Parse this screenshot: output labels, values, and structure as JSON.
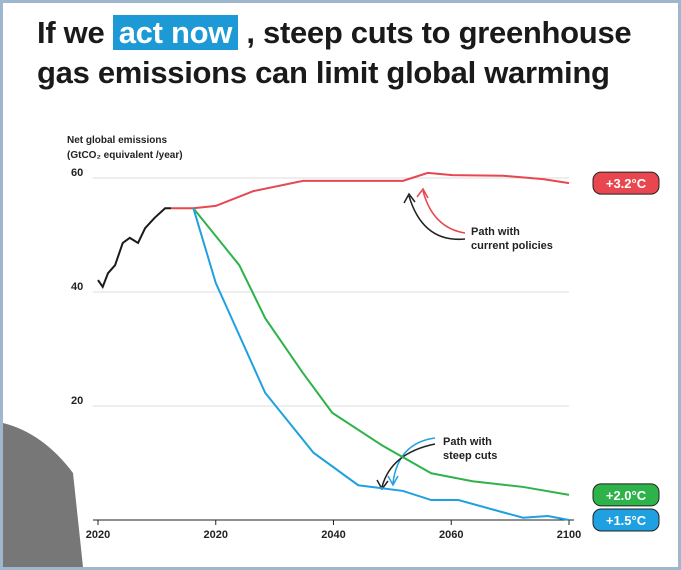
{
  "title": {
    "before": "If we",
    "highlight": "act now",
    "after": ", steep cuts to greenhouse",
    "line2": "gas emissions can limit global warming"
  },
  "chart_data": {
    "type": "line",
    "y_label": [
      "Net global emissions",
      "(GtCO₂ equivalent /year)"
    ],
    "xlim": [
      0,
      4
    ],
    "xticks": [
      0,
      1,
      2,
      3,
      4
    ],
    "categories": [
      "2020",
      "2020",
      "2040",
      "2060",
      "2100"
    ],
    "ylim": [
      0,
      60
    ],
    "yticks": [
      20,
      40,
      60
    ],
    "grid": true,
    "series": [
      {
        "color": "#1a1a1a",
        "x": [
          0,
          0.04,
          0.085,
          0.145,
          0.21,
          0.27,
          0.34,
          0.4,
          0.48,
          0.57,
          0.62
        ],
        "values": [
          42.1,
          40.9,
          43.3,
          44.7,
          48.6,
          49.5,
          48.6,
          51.2,
          53,
          54.7,
          54.7
        ]
      },
      {
        "color": "#e8474f",
        "label": "+3.2°C",
        "x": [
          0.62,
          0.81,
          1.0,
          1.32,
          1.74,
          2.16,
          2.59,
          2.8,
          3.01,
          3.44,
          3.78,
          4.0
        ],
        "values": [
          54.7,
          54.7,
          55.1,
          57.7,
          59.5,
          59.5,
          59.5,
          60.9,
          60.5,
          60.4,
          59.8,
          59.1
        ]
      },
      {
        "color": "#2db34a",
        "label": "+2.0°C",
        "x": [
          0.81,
          1.2,
          1.42,
          1.74,
          1.99,
          2.42,
          2.83,
          3.18,
          3.61,
          4.0
        ],
        "values": [
          54.7,
          44.7,
          35.4,
          25.8,
          18.8,
          13,
          8.2,
          6.8,
          5.8,
          4.4
        ]
      },
      {
        "color": "#1fa0e0",
        "label": "+1.5°C",
        "x": [
          0.81,
          1.0,
          1.42,
          1.83,
          2.21,
          2.59,
          2.83,
          3.06,
          3.36,
          3.61,
          3.82,
          4.0
        ],
        "values": [
          54.7,
          41.6,
          22.3,
          11.8,
          6.1,
          5.1,
          3.5,
          3.5,
          1.8,
          0.4,
          0.7,
          0
        ]
      }
    ],
    "annotations": [
      [
        "Path with",
        "current policies"
      ],
      [
        "Path with",
        "steep cuts"
      ]
    ]
  }
}
